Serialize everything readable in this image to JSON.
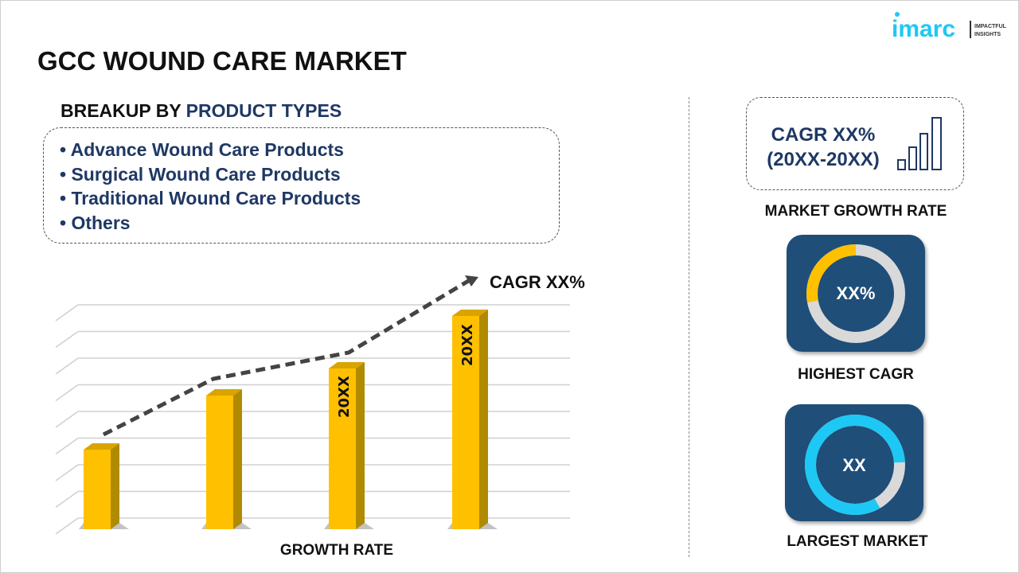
{
  "title": "GCC WOUND CARE MARKET",
  "breakup": {
    "prefix": "BREAKUP BY ",
    "highlight": "PRODUCT TYPES",
    "items": [
      "• Advance Wound Care Products",
      "• Surgical Wound Care Products",
      "• Traditional Wound Care Products",
      "• Others"
    ]
  },
  "chart": {
    "trend_label": "CAGR XX%",
    "bar_labels": [
      "",
      "",
      "20XX",
      "20XX"
    ],
    "x_label": "GROWTH RATE",
    "bar_color": "#ffc000"
  },
  "growth": {
    "line1": "CAGR XX%",
    "line2": "(20XX-20XX)",
    "label": "MARKET GROWTH RATE"
  },
  "highest": {
    "value": "XX%",
    "label": "HIGHEST CAGR",
    "accent": "#ffc000"
  },
  "largest": {
    "value": "XX",
    "label": "LARGEST MARKET",
    "accent": "#1ec8f4"
  },
  "logo": {
    "brand": "imarc",
    "tagline1": "IMPACTFUL",
    "tagline2": "INSIGHTS",
    "color": "#1ec8f4"
  }
}
